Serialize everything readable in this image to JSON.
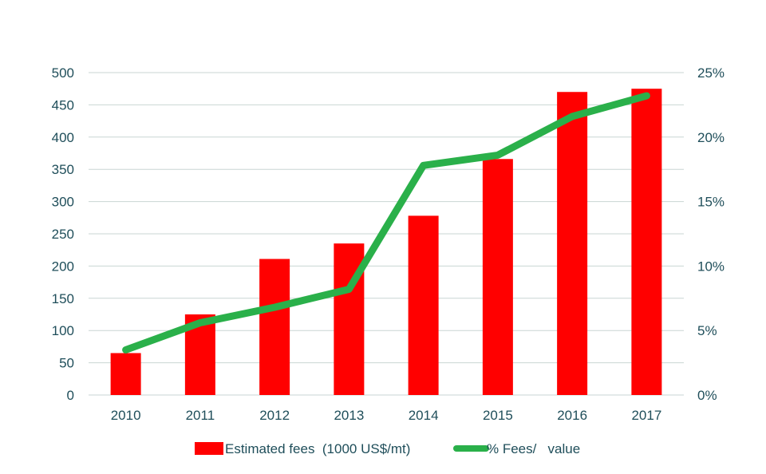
{
  "chart_data": {
    "type": "bar",
    "categories": [
      "2010",
      "2011",
      "2012",
      "2013",
      "2014",
      "2015",
      "2016",
      "2017"
    ],
    "series": [
      {
        "name": "Estimated fees (1000 US$/mt)",
        "type": "bar",
        "axis": "left",
        "color": "#ff0000",
        "values": [
          65,
          125,
          211,
          235,
          278,
          366,
          470,
          475
        ]
      },
      {
        "name": "% Fees/ value",
        "type": "line",
        "axis": "right",
        "color": "#2ab04a",
        "values": [
          0.035,
          0.056,
          0.068,
          0.082,
          0.178,
          0.186,
          0.216,
          0.232
        ]
      }
    ],
    "y_left": {
      "ylim": [
        0,
        500
      ],
      "ticks": [
        "0",
        "50",
        "100",
        "150",
        "200",
        "250",
        "300",
        "350",
        "400",
        "450",
        "500"
      ]
    },
    "y_right": {
      "ylim": [
        0,
        0.25
      ],
      "ticks": [
        "0%",
        "5%",
        "10%",
        "15%",
        "20%",
        "25%"
      ]
    },
    "grid": true,
    "legend": {
      "position": "bottom",
      "labels": [
        "Estimated fees  (1000 US$/mt)",
        "% Fees/   value"
      ]
    },
    "title": "",
    "xlabel": "",
    "ylabel": ""
  }
}
